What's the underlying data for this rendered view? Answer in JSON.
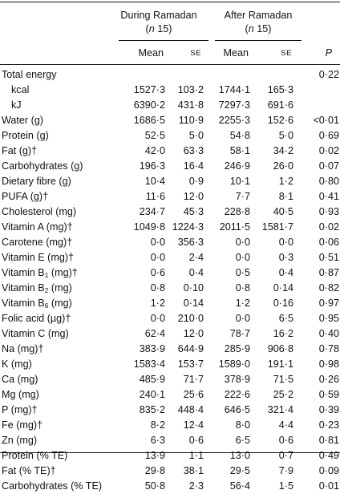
{
  "header": {
    "group1_line1": "During Ramadan",
    "group1_line2_open": "(",
    "group1_line2_n": "n",
    "group1_line2_close": " 15)",
    "group2_line1": "After Ramadan",
    "group2_line2_open": "(",
    "group2_line2_n": "n",
    "group2_line2_close": " 15)",
    "mean1": "Mean",
    "se1": "SE",
    "mean2": "Mean",
    "se2": "SE",
    "p": "P"
  },
  "rows": [
    {
      "label": "Total energy",
      "indent": false,
      "m1": "",
      "s1": "",
      "m2": "",
      "s2": "",
      "p": "0·22"
    },
    {
      "label": "kcal",
      "indent": true,
      "m1": "1527·3",
      "s1": "103·2",
      "m2": "1744·1",
      "s2": "165·3",
      "p": ""
    },
    {
      "label": "kJ",
      "indent": true,
      "m1": "6390·2",
      "s1": "431·8",
      "m2": "7297·3",
      "s2": "691·6",
      "p": ""
    },
    {
      "label": "Water (g)",
      "m1": "1686·5",
      "s1": "110·9",
      "m2": "2255·3",
      "s2": "152·6",
      "p": "<0·01"
    },
    {
      "label": "Protein (g)",
      "m1": "52·5",
      "s1": "5·0",
      "m2": "54·8",
      "s2": "5·0",
      "p": "0·69"
    },
    {
      "label": "Fat (g)†",
      "m1": "42·0",
      "s1": "63·3",
      "m2": "58·1",
      "s2": "34·2",
      "p": "0·02"
    },
    {
      "label": "Carbohydrates (g)",
      "m1": "196·3",
      "s1": "16·4",
      "m2": "246·9",
      "s2": "26·0",
      "p": "0·07"
    },
    {
      "label": "Dietary fibre (g)",
      "m1": "10·4",
      "s1": "0·9",
      "m2": "10·1",
      "s2": "1·2",
      "p": "0·80"
    },
    {
      "label": "PUFA (g)†",
      "m1": "11·6",
      "s1": "12·0",
      "m2": "7·7",
      "s2": "8·1",
      "p": "0·41"
    },
    {
      "label": "Cholesterol (mg)",
      "m1": "234·7",
      "s1": "45·3",
      "m2": "228·8",
      "s2": "40·5",
      "p": "0·93"
    },
    {
      "label": "Vitamin A (mg)†",
      "m1": "1049·8",
      "s1": "1224·3",
      "m2": "2011·5",
      "s2": "1581·7",
      "p": "0·02"
    },
    {
      "label": "Carotene (mg)†",
      "m1": "0·0",
      "s1": "356·3",
      "m2": "0·0",
      "s2": "0·0",
      "p": "0·06"
    },
    {
      "label": "Vitamin E (mg)†",
      "m1": "0·0",
      "s1": "2·4",
      "m2": "0·0",
      "s2": "0·3",
      "p": "0·51"
    },
    {
      "label": "Vitamin B",
      "sub": "1",
      "tail": " (mg)†",
      "m1": "0·6",
      "s1": "0·4",
      "m2": "0·5",
      "s2": "0·4",
      "p": "0·87"
    },
    {
      "label": "Vitamin B",
      "sub": "2",
      "tail": " (mg)",
      "m1": "0·8",
      "s1": "0·10",
      "m2": "0·8",
      "s2": "0·14",
      "p": "0·82"
    },
    {
      "label": "Vitamin B",
      "sub": "6",
      "tail": " (mg)",
      "m1": "1·2",
      "s1": "0·14",
      "m2": "1·2",
      "s2": "0·16",
      "p": "0·97"
    },
    {
      "label": "Folic acid (µg)†",
      "m1": "0·0",
      "s1": "210·0",
      "m2": "0·0",
      "s2": "6·5",
      "p": "0·95"
    },
    {
      "label": "Vitamin C (mg)",
      "m1": "62·4",
      "s1": "12·0",
      "m2": "78·7",
      "s2": "16·2",
      "p": "0·40"
    },
    {
      "label": "Na (mg)†",
      "m1": "383·9",
      "s1": "644·9",
      "m2": "285·9",
      "s2": "906·8",
      "p": "0·78"
    },
    {
      "label": "K (mg)",
      "m1": "1583·4",
      "s1": "153·7",
      "m2": "1589·0",
      "s2": "191·1",
      "p": "0·98"
    },
    {
      "label": "Ca (mg)",
      "m1": "485·9",
      "s1": "71·7",
      "m2": "378·9",
      "s2": "71·5",
      "p": "0·26"
    },
    {
      "label": "Mg (mg)",
      "m1": "240·1",
      "s1": "25·6",
      "m2": "222·6",
      "s2": "25·2",
      "p": "0·59"
    },
    {
      "label": "P (mg)†",
      "m1": "835·2",
      "s1": "448·4",
      "m2": "646·5",
      "s2": "321·4",
      "p": "0·39"
    },
    {
      "label": "Fe (mg)†",
      "m1": "8·2",
      "s1": "12·4",
      "m2": "8·0",
      "s2": "4·4",
      "p": "0·23"
    },
    {
      "label": "Zn (mg)",
      "m1": "6·3",
      "s1": "0·6",
      "m2": "6·5",
      "s2": "0·6",
      "p": "0·81"
    },
    {
      "label": "Protein (% TE)",
      "m1": "13·9",
      "s1": "1·1",
      "m2": "13·0",
      "s2": "0·7",
      "p": "0·49"
    },
    {
      "label": "Fat (% TE)†",
      "m1": "29·8",
      "s1": "38·1",
      "m2": "29·5",
      "s2": "7·9",
      "p": "0·09"
    },
    {
      "label": "Carbohydrates (% TE)",
      "m1": "50·8",
      "s1": "2·3",
      "m2": "56·4",
      "s2": "1·5",
      "p": "0·01"
    }
  ]
}
